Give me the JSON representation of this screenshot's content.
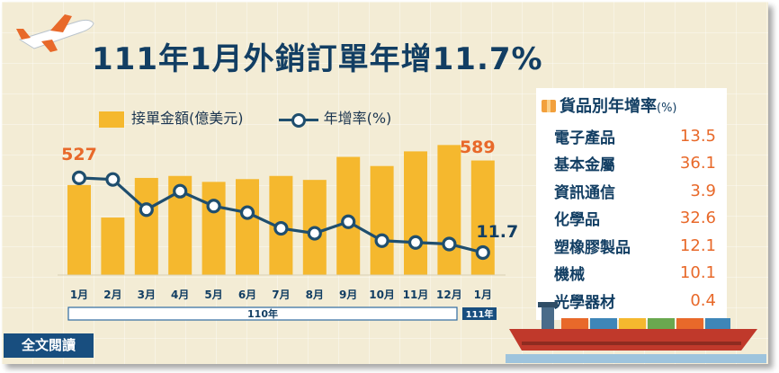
{
  "title": "111年1月外銷訂單年增11.7%",
  "legend": {
    "bar": "接單金額(億美元)",
    "line": "年增率(%)"
  },
  "chart_data": {
    "type": "bar",
    "categories": [
      "1月",
      "2月",
      "3月",
      "4月",
      "5月",
      "6月",
      "7月",
      "8月",
      "9月",
      "10月",
      "11月",
      "12月",
      "1月"
    ],
    "series": [
      {
        "name": "接單金額(億美元)",
        "type": "bar",
        "values": [
          527,
          445,
          545,
          550,
          535,
          542,
          550,
          540,
          598,
          575,
          612,
          628,
          589
        ]
      },
      {
        "name": "年增率(%)",
        "type": "line",
        "values": [
          49.3,
          48.5,
          33.3,
          42.6,
          35.1,
          31.8,
          23.9,
          21.4,
          27.2,
          17.7,
          16.8,
          16.0,
          11.7
        ]
      }
    ],
    "data_labels": {
      "first_bar": "527",
      "last_bar": "589",
      "last_line": "11.7"
    },
    "year_groups": [
      {
        "label": "110年"
      },
      {
        "label": "111年"
      }
    ],
    "colors": {
      "bar": "#f5b82e",
      "line": "#1f4e6e",
      "label_bar": "#e8692a"
    }
  },
  "side_panel": {
    "title": "貨品別年增率",
    "unit": "(%)",
    "items": [
      {
        "name": "電子產品",
        "value": "13.5"
      },
      {
        "name": "基本金屬",
        "value": "36.1"
      },
      {
        "name": "資訊通信",
        "value": "3.9"
      },
      {
        "name": "化學品",
        "value": "32.6"
      },
      {
        "name": "塑橡膠製品",
        "value": "12.1"
      },
      {
        "name": "機械",
        "value": "10.1"
      },
      {
        "name": "光學器材",
        "value": "0.4"
      }
    ]
  },
  "read_full_button": "全文閱讀"
}
